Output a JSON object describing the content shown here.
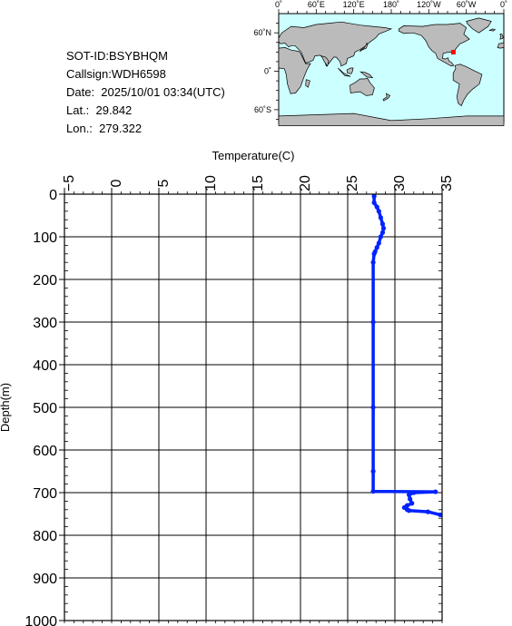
{
  "info": {
    "sot_id": "SOT-ID:BSYBHQM",
    "callsign": "Callsign:WDH6598",
    "date": "Date:  2025/10/01 03:34(UTC)",
    "lat": "Lat.:  29.842",
    "lon": "Lon.:  279.322"
  },
  "map": {
    "lon_labels": [
      "0˚",
      "60˚E",
      "120˚E",
      "180˚",
      "120˚W",
      "60˚W",
      "0˚"
    ],
    "lat_labels": [
      "60˚N",
      "0˚",
      "60˚S"
    ],
    "ocean_color": "#ccffff",
    "land_color": "#bbbbbb",
    "marker_color": "#ff0000",
    "marker": {
      "lat": 29.842,
      "lon": 279.322
    }
  },
  "chart_data": {
    "type": "line",
    "xlabel": "Temperature(C)",
    "ylabel": "Depth(m)",
    "xlim": [
      -5,
      35
    ],
    "ylim": [
      1000,
      0
    ],
    "x_ticks": [
      -5,
      0,
      5,
      10,
      15,
      20,
      25,
      30,
      35
    ],
    "y_ticks": [
      0,
      100,
      200,
      300,
      400,
      500,
      600,
      700,
      800,
      900,
      1000
    ],
    "grid": true,
    "line_color": "#0022ff",
    "series": [
      {
        "points": [
          [
            27.8,
            5
          ],
          [
            27.8,
            20
          ],
          [
            28.1,
            30
          ],
          [
            28.3,
            40
          ],
          [
            28.5,
            55
          ],
          [
            28.7,
            70
          ],
          [
            28.8,
            80
          ],
          [
            28.7,
            90
          ],
          [
            28.5,
            100
          ],
          [
            28.3,
            115
          ],
          [
            28.1,
            125
          ],
          [
            27.9,
            135
          ],
          [
            27.8,
            140
          ],
          [
            27.7,
            160
          ],
          [
            27.7,
            300
          ],
          [
            27.7,
            500
          ],
          [
            27.7,
            650
          ],
          [
            27.7,
            697
          ],
          [
            34.3,
            698
          ],
          [
            32.0,
            700
          ],
          [
            31.5,
            705
          ],
          [
            31.6,
            715
          ],
          [
            31.8,
            725
          ],
          [
            31.3,
            730
          ],
          [
            31.0,
            735
          ],
          [
            31.3,
            740
          ],
          [
            31.5,
            742
          ],
          [
            33.5,
            745
          ],
          [
            34.8,
            752
          ]
        ]
      }
    ]
  }
}
